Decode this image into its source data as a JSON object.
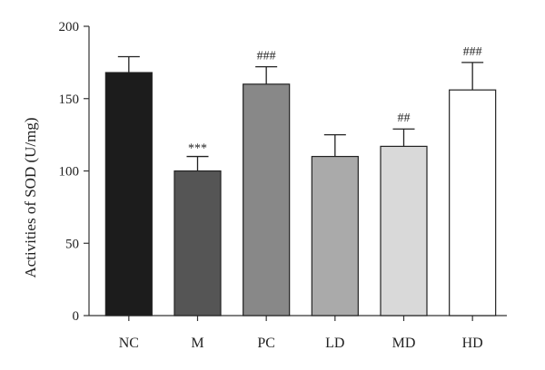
{
  "chart_data": {
    "type": "bar",
    "title": "",
    "xlabel": "",
    "ylabel": "Activities of SOD (U/mg)",
    "ylim": [
      0,
      200
    ],
    "yticks": [
      0,
      50,
      100,
      150,
      200
    ],
    "grid": false,
    "categories": [
      "NC",
      "M",
      "PC",
      "LD",
      "MD",
      "HD"
    ],
    "values": [
      168,
      100,
      160,
      110,
      117,
      156
    ],
    "errors": [
      11,
      10,
      12,
      15,
      12,
      19
    ],
    "annotations": [
      "",
      "***",
      "###",
      "",
      "##",
      "###"
    ],
    "colors": [
      "#1c1c1c",
      "#555555",
      "#888888",
      "#aaaaaa",
      "#d9d9d9",
      "#ffffff"
    ]
  }
}
